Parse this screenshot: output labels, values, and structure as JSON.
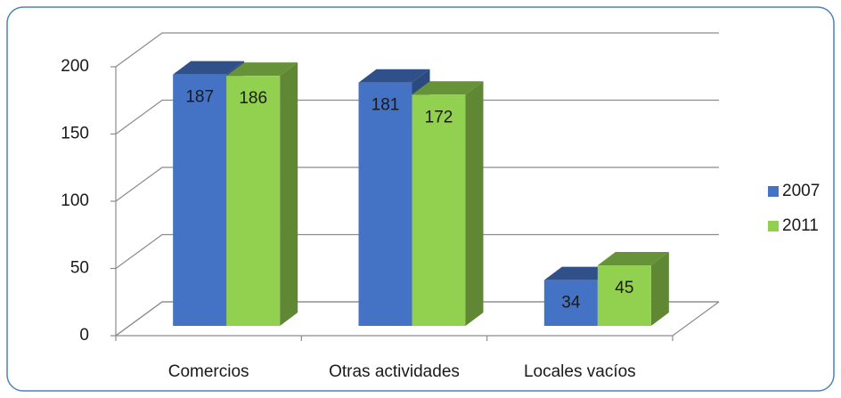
{
  "chart_data": {
    "type": "bar3d",
    "categories": [
      "Comercios",
      "Otras actividades",
      "Locales vacíos"
    ],
    "series": [
      {
        "name": "2007",
        "color": "#4472c4",
        "values": [
          187,
          181,
          34
        ]
      },
      {
        "name": "2011",
        "color": "#92d050",
        "values": [
          186,
          172,
          45
        ]
      }
    ],
    "ylim": [
      0,
      200
    ],
    "yticks": [
      0,
      50,
      100,
      150,
      200
    ],
    "grid": true,
    "legend": "right"
  }
}
